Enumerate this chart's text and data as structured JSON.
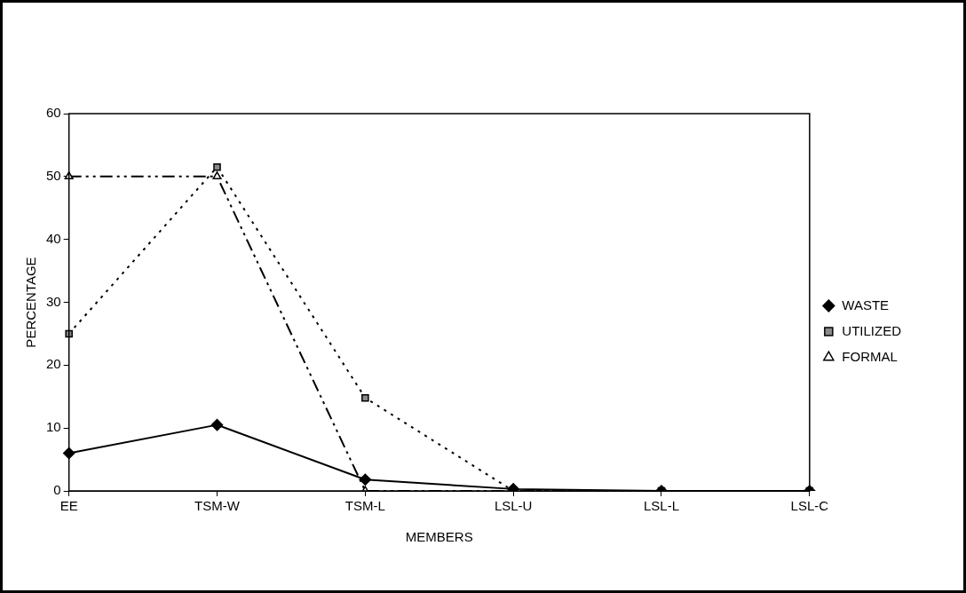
{
  "chart_data": {
    "type": "line",
    "xlabel": "MEMBERS",
    "ylabel": "PERCENTAGE",
    "categories": [
      "EE",
      "TSM-W",
      "TSM-L",
      "LSL-U",
      "LSL-L",
      "LSL-C"
    ],
    "series": [
      {
        "name": "WASTE",
        "color": "#000000",
        "marker": "diamond",
        "line_style": "solid",
        "values": [
          6,
          10.5,
          1.8,
          0.3,
          0,
          0
        ]
      },
      {
        "name": "UTILIZED",
        "color": "#000000",
        "marker": "square",
        "line_style": "dotted",
        "values": [
          25,
          51.5,
          14.8,
          0,
          0,
          0
        ]
      },
      {
        "name": "FORMAL",
        "color": "#000000",
        "marker": "triangle",
        "line_style": "dashed",
        "values": [
          50,
          50,
          0,
          0,
          0,
          0
        ]
      }
    ],
    "ylim": [
      0,
      60
    ],
    "yticks": [
      0,
      10,
      20,
      30,
      40,
      50,
      60
    ],
    "grid": false,
    "legend": "right"
  }
}
